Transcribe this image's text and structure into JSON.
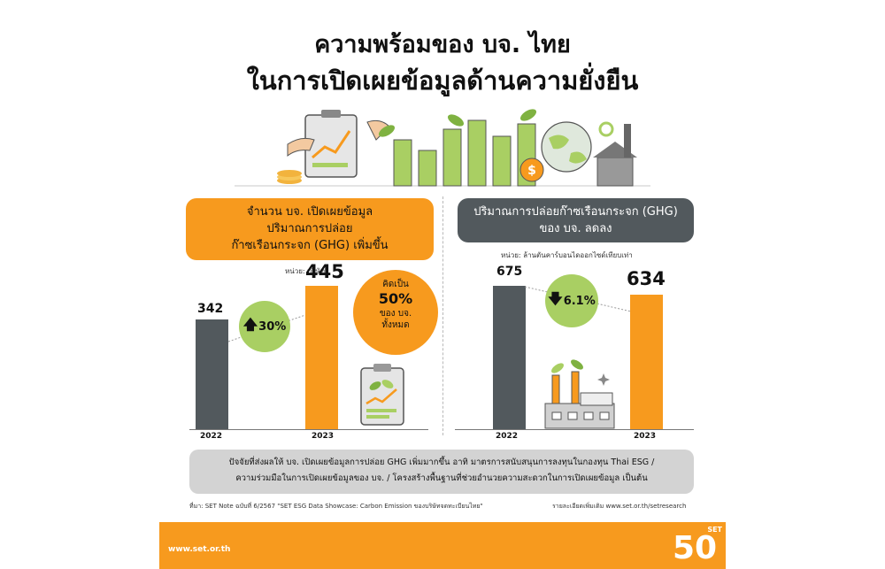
{
  "header": {
    "title_line1": "ความพร้อมของ บจ. ไทย",
    "title_line2": "ในการเปิดเผยข้อมูลด้านความยั่งยืน"
  },
  "left_panel": {
    "heading_line1": "จำนวน บจ. เปิดเผยข้อมูล",
    "heading_line2": "ปริมาณการปล่อย",
    "heading_line3": "ก๊าซเรือนกระจก (GHG) เพิ่มขึ้น",
    "unit": "หน่วย: บริษัท",
    "change_label": "30%",
    "callout_line1": "คิดเป็น",
    "callout_pct": "50%",
    "callout_line2": "ของ บจ.",
    "callout_line3": "ทั้งหมด"
  },
  "right_panel": {
    "heading_line1": "ปริมาณการปล่อยก๊าซเรือนกระจก (GHG)",
    "heading_line2": "ของ บจ. ลดลง",
    "unit": "หน่วย: ล้านตันคาร์บอนไดออกไซด์เทียบเท่า",
    "change_label": "6.1%"
  },
  "chart_data": [
    {
      "type": "bar",
      "title": "จำนวน บจ. เปิดเผยข้อมูลปริมาณการปล่อยก๊าซเรือนกระจก (GHG) เพิ่มขึ้น",
      "categories": [
        "2022",
        "2023"
      ],
      "values": [
        342,
        445
      ],
      "value_labels": [
        "342",
        "445"
      ],
      "unit": "หน่วย: บริษัท",
      "colors": [
        "#52595d",
        "#f79a1e"
      ],
      "ylim": [
        0,
        600
      ],
      "grid": false
    },
    {
      "type": "bar",
      "title": "ปริมาณการปล่อยก๊าซเรือนกระจก (GHG) ของ บจ. ลดลง",
      "categories": [
        "2022",
        "2023"
      ],
      "values": [
        675,
        634
      ],
      "value_labels": [
        "675",
        "634"
      ],
      "unit": "หน่วย: ล้านตันคาร์บอนไดออกไซด์เทียบเท่า",
      "colors": [
        "#52595d",
        "#f79a1e"
      ],
      "ylim": [
        0,
        700
      ],
      "grid": false
    }
  ],
  "factors": {
    "line1": "ปัจจัยที่ส่งผลให้ บจ. เปิดเผยข้อมูลการปล่อย GHG เพิ่มมากขึ้น อาทิ มาตรการสนับสนุนการลงทุนในกองทุน Thai ESG /",
    "line2": "ความร่วมมือในการเปิดเผยข้อมูลของ บจ. / โครงสร้างพื้นฐานที่ช่วยอำนวยความสะดวกในการเปิดเผยข้อมูล เป็นต้น"
  },
  "source": {
    "left": "ที่มา: SET Note ฉบับที่ 6/2567 \"SET ESG Data Showcase: Carbon Emission ของบริษัทจดทะเบียนไทย\"",
    "right": "รายละเอียดเพิ่มเติม www.set.or.th/setresearch"
  },
  "footer": {
    "url": "www.set.or.th",
    "logo_text": "SET",
    "logo_number": "50"
  },
  "colors": {
    "orange": "#f79a1e",
    "dark_gray": "#52595d",
    "green": "#a9cf63"
  }
}
